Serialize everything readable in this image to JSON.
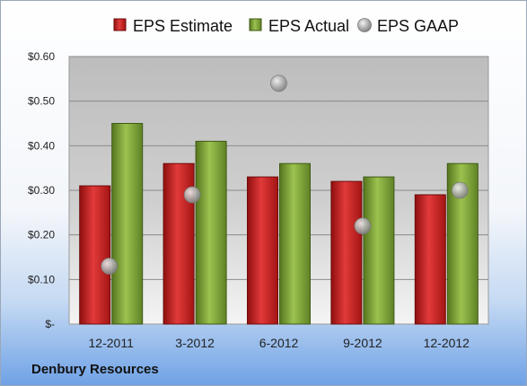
{
  "company_name": "Denbury Resources",
  "colors": {
    "estimate": "#cc1f1f",
    "actual": "#7ea33a",
    "gaap": "#a8a8a8"
  },
  "chart_data": {
    "type": "bar",
    "title": "",
    "xlabel": "",
    "ylabel": "",
    "categories": [
      "12-2011",
      "3-2012",
      "6-2012",
      "9-2012",
      "12-2012"
    ],
    "series": [
      {
        "name": "EPS Estimate",
        "kind": "bar",
        "values": [
          0.31,
          0.36,
          0.33,
          0.32,
          0.29
        ]
      },
      {
        "name": "EPS Actual",
        "kind": "bar",
        "values": [
          0.45,
          0.41,
          0.36,
          0.33,
          0.36
        ]
      },
      {
        "name": "EPS GAAP",
        "kind": "scatter",
        "values": [
          0.13,
          0.29,
          0.54,
          0.22,
          0.3
        ]
      }
    ],
    "ylim": [
      0,
      0.6
    ],
    "yticks": [
      0,
      0.1,
      0.2,
      0.3,
      0.4,
      0.5,
      0.6
    ],
    "ytick_labels": [
      "$-",
      "$0.10",
      "$0.20",
      "$0.30",
      "$0.40",
      "$0.50",
      "$0.60"
    ],
    "grid": true,
    "legend_position": "top"
  }
}
